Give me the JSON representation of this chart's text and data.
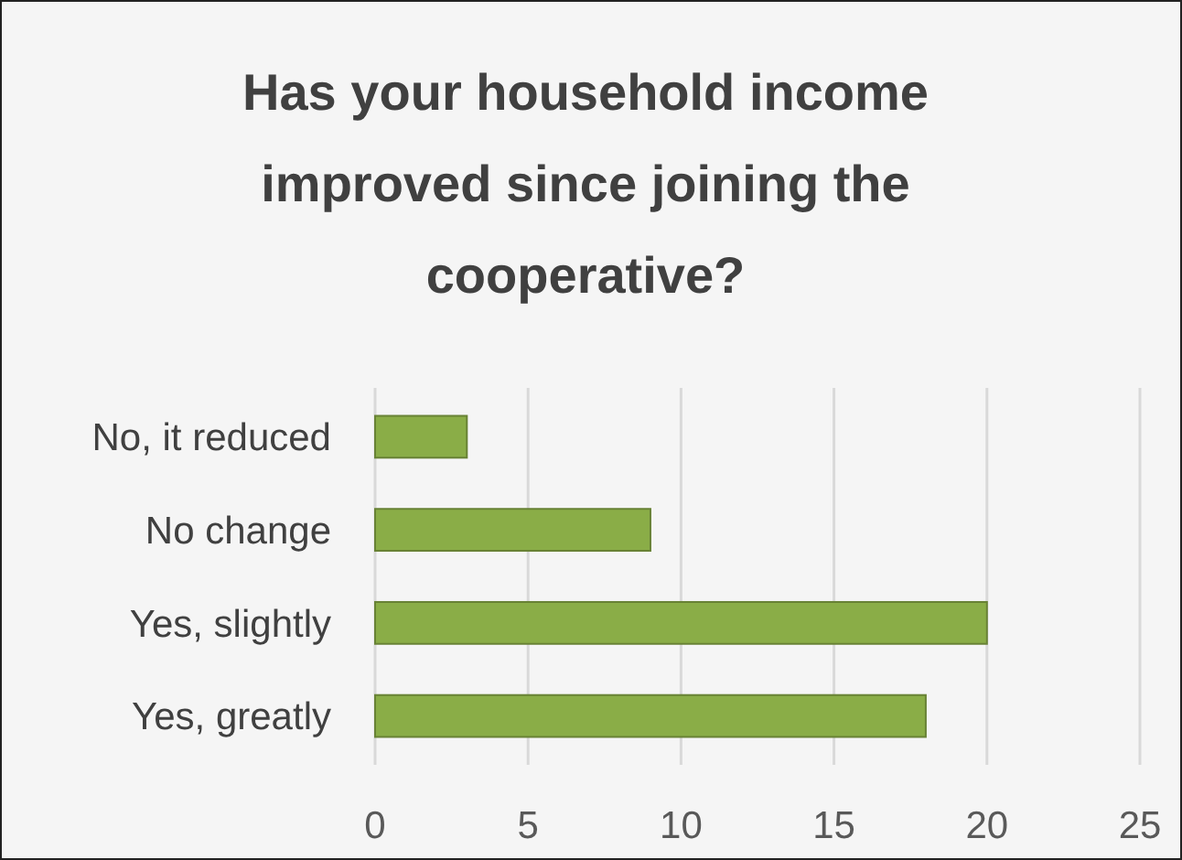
{
  "chart_data": {
    "type": "bar",
    "orientation": "horizontal",
    "title": "Has your household income improved since joining the cooperative?",
    "categories": [
      "No, it reduced",
      "No change",
      "Yes, slightly",
      "Yes, greatly"
    ],
    "values": [
      3,
      9,
      20,
      18
    ],
    "color": "#8aad47",
    "xlim": [
      0,
      25
    ],
    "xticks": [
      0,
      5,
      10,
      15,
      20,
      25
    ],
    "grid": "x"
  }
}
